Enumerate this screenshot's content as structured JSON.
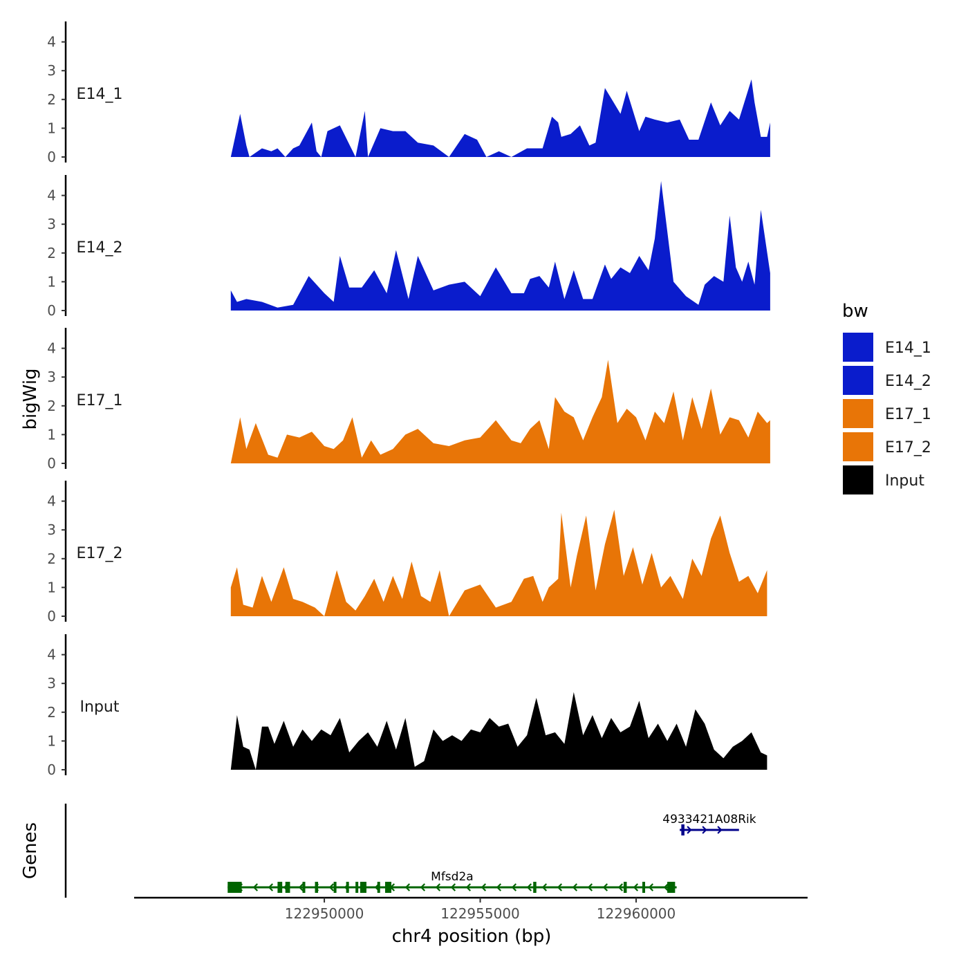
{
  "chart_data": {
    "type": "area",
    "title": "",
    "xlabel": "chr4 position (bp)",
    "ylabel": "bigWig",
    "genes_label": "Genes",
    "xlim": [
      122943900,
      122965500
    ],
    "ylim": [
      0,
      4.7
    ],
    "x_ticks": [
      122950000,
      122955000,
      122960000
    ],
    "x_tick_labels": [
      "122950000",
      "122955000",
      "122960000"
    ],
    "y_ticks": [
      0,
      1,
      2,
      3,
      4
    ],
    "y_tick_labels": [
      "0",
      "1",
      "2",
      "3",
      "4"
    ],
    "legend": {
      "title": "bw",
      "position": "right",
      "items": [
        {
          "label": "E14_1",
          "color": "#0a1ccc"
        },
        {
          "label": "E14_2",
          "color": "#0a1ccc"
        },
        {
          "label": "E17_1",
          "color": "#e87507"
        },
        {
          "label": "E17_2",
          "color": "#e87507"
        },
        {
          "label": "Input",
          "color": "#000000"
        }
      ]
    },
    "series": [
      {
        "name": "E14_1",
        "color": "#0a1ccc",
        "x": [
          122947000,
          122947100,
          122947300,
          122947500,
          122947600,
          122948000,
          122948300,
          122948500,
          122948750,
          122949000,
          122949200,
          122949600,
          122949750,
          122949900,
          122950100,
          122950500,
          122951000,
          122951300,
          122951400,
          122951800,
          122952200,
          122952600,
          122953000,
          122953500,
          122954000,
          122954500,
          122954900,
          122955200,
          122955600,
          122956000,
          122956500,
          122957000,
          122957300,
          122957500,
          122957600,
          122957900,
          122958200,
          122958500,
          122958700,
          122959000,
          122959500,
          122959700,
          122959900,
          122960100,
          122960300,
          122960600,
          122961000,
          122961400,
          122961700,
          122962000,
          122962400,
          122962700,
          122963000,
          122963300,
          122963700,
          122963800,
          122964000,
          122964200,
          122964300
        ],
        "values": [
          0,
          0.5,
          1.5,
          0.4,
          0,
          0.3,
          0.2,
          0.3,
          0,
          0.3,
          0.4,
          1.2,
          0.2,
          0,
          0.9,
          1.1,
          0,
          1.6,
          0,
          1,
          0.9,
          0.9,
          0.5,
          0.4,
          0,
          0.8,
          0.6,
          0,
          0.2,
          0,
          0.3,
          0.3,
          1.4,
          1.2,
          0.7,
          0.8,
          1.1,
          0.4,
          0.5,
          2.4,
          1.5,
          2.3,
          1.6,
          0.9,
          1.4,
          1.3,
          1.2,
          1.3,
          0.6,
          0.6,
          1.9,
          1.1,
          1.6,
          1.3,
          2.7,
          1.9,
          0.7,
          0.7,
          1.2
        ]
      },
      {
        "name": "E14_2",
        "color": "#0a1ccc",
        "x": [
          122947000,
          122947200,
          122947500,
          122948000,
          122948500,
          122949000,
          122949500,
          122950000,
          122950300,
          122950500,
          122950800,
          122951200,
          122951600,
          122952000,
          122952300,
          122952700,
          122953000,
          122953500,
          122954000,
          122954500,
          122955000,
          122955500,
          122956000,
          122956400,
          122956600,
          122956900,
          122957200,
          122957400,
          122957700,
          122958000,
          122958300,
          122958600,
          122959000,
          122959200,
          122959500,
          122959800,
          122960100,
          122960400,
          122960600,
          122960800,
          122961200,
          122961600,
          122962000,
          122962200,
          122962500,
          122962800,
          122963000,
          122963200,
          122963400,
          122963600,
          122963800,
          122964000,
          122964300
        ],
        "values": [
          0.7,
          0.3,
          0.4,
          0.3,
          0.1,
          0.2,
          1.2,
          0.6,
          0.3,
          1.9,
          0.8,
          0.8,
          1.4,
          0.6,
          2.1,
          0.4,
          1.9,
          0.7,
          0.9,
          1,
          0.5,
          1.5,
          0.6,
          0.6,
          1.1,
          1.2,
          0.8,
          1.7,
          0.4,
          1.4,
          0.4,
          0.4,
          1.6,
          1.1,
          1.5,
          1.3,
          1.9,
          1.4,
          2.5,
          4.5,
          1,
          0.5,
          0.2,
          0.9,
          1.2,
          1,
          3.3,
          1.5,
          1,
          1.7,
          0.9,
          3.5,
          1.3
        ]
      },
      {
        "name": "E17_1",
        "color": "#e87507",
        "x": [
          122947000,
          122947300,
          122947500,
          122947800,
          122948200,
          122948500,
          122948800,
          122949200,
          122949600,
          122950000,
          122950300,
          122950600,
          122950900,
          122951200,
          122951500,
          122951800,
          122952200,
          122952600,
          122953000,
          122953500,
          122954000,
          122954500,
          122955000,
          122955500,
          122956000,
          122956300,
          122956600,
          122956900,
          122957200,
          122957400,
          122957700,
          122958000,
          122958300,
          122958600,
          122958900,
          122959100,
          122959400,
          122959700,
          122960000,
          122960300,
          122960600,
          122960900,
          122961200,
          122961500,
          122961800,
          122962100,
          122962400,
          122962700,
          122963000,
          122963300,
          122963600,
          122963900,
          122964200,
          122964300
        ],
        "values": [
          0,
          1.6,
          0.5,
          1.4,
          0.3,
          0.2,
          1,
          0.9,
          1.1,
          0.6,
          0.5,
          0.8,
          1.6,
          0.2,
          0.8,
          0.3,
          0.5,
          1,
          1.2,
          0.7,
          0.6,
          0.8,
          0.9,
          1.5,
          0.8,
          0.7,
          1.2,
          1.5,
          0.5,
          2.3,
          1.8,
          1.6,
          0.8,
          1.6,
          2.3,
          3.6,
          1.4,
          1.9,
          1.6,
          0.8,
          1.8,
          1.4,
          2.5,
          0.8,
          2.3,
          1.2,
          2.6,
          1,
          1.6,
          1.5,
          0.9,
          1.8,
          1.4,
          1.5
        ]
      },
      {
        "name": "E17_2",
        "color": "#e87507",
        "x": [
          122947000,
          122947200,
          122947400,
          122947700,
          122948000,
          122948300,
          122948700,
          122949000,
          122949300,
          122949700,
          122950000,
          122950400,
          122950700,
          122951000,
          122951300,
          122951600,
          122951900,
          122952200,
          122952500,
          122952800,
          122953100,
          122953400,
          122953700,
          122954000,
          122954500,
          122955000,
          122955500,
          122956000,
          122956400,
          122956700,
          122957000,
          122957200,
          122957500,
          122957600,
          122957900,
          122958100,
          122958400,
          122958700,
          122959000,
          122959300,
          122959600,
          122959900,
          122960200,
          122960500,
          122960800,
          122961100,
          122961500,
          122961800,
          122962100,
          122962400,
          122962700,
          122963000,
          122963300,
          122963600,
          122963900,
          122964200
        ],
        "values": [
          1,
          1.7,
          0.4,
          0.3,
          1.4,
          0.5,
          1.7,
          0.6,
          0.5,
          0.3,
          0,
          1.6,
          0.5,
          0.2,
          0.7,
          1.3,
          0.5,
          1.4,
          0.6,
          1.9,
          0.7,
          0.5,
          1.6,
          0,
          0.9,
          1.1,
          0.3,
          0.5,
          1.3,
          1.4,
          0.5,
          1,
          1.3,
          3.6,
          1,
          2.1,
          3.5,
          0.9,
          2.5,
          3.7,
          1.4,
          2.4,
          1.1,
          2.2,
          1,
          1.4,
          0.6,
          2,
          1.4,
          2.7,
          3.5,
          2.2,
          1.2,
          1.4,
          0.8,
          1.6
        ]
      },
      {
        "name": "Input",
        "color": "#000000",
        "x": [
          122947000,
          122947200,
          122947400,
          122947600,
          122947800,
          122948000,
          122948200,
          122948400,
          122948700,
          122949000,
          122949300,
          122949600,
          122949900,
          122950200,
          122950500,
          122950800,
          122951100,
          122951400,
          122951700,
          122952000,
          122952300,
          122952600,
          122952900,
          122953200,
          122953500,
          122953800,
          122954100,
          122954400,
          122954700,
          122955000,
          122955300,
          122955600,
          122955900,
          122956200,
          122956500,
          122956800,
          122957100,
          122957400,
          122957700,
          122958000,
          122958300,
          122958600,
          122958900,
          122959200,
          122959500,
          122959800,
          122960100,
          122960400,
          122960700,
          122961000,
          122961300,
          122961600,
          122961900,
          122962200,
          122962500,
          122962800,
          122963100,
          122963400,
          122963700,
          122964000,
          122964200
        ],
        "values": [
          0,
          1.9,
          0.8,
          0.7,
          0,
          1.5,
          1.5,
          0.9,
          1.7,
          0.8,
          1.4,
          1.0,
          1.4,
          1.2,
          1.8,
          0.6,
          1.0,
          1.3,
          0.8,
          1.7,
          0.7,
          1.8,
          0.1,
          0.3,
          1.4,
          1.0,
          1.2,
          1.0,
          1.4,
          1.3,
          1.8,
          1.5,
          1.6,
          0.8,
          1.2,
          2.5,
          1.2,
          1.3,
          0.9,
          2.7,
          1.2,
          1.9,
          1.1,
          1.8,
          1.3,
          1.5,
          2.4,
          1.1,
          1.6,
          1.0,
          1.6,
          0.8,
          2.1,
          1.6,
          0.7,
          0.4,
          0.8,
          1.0,
          1.3,
          0.6,
          0.5
        ]
      }
    ],
    "genes": [
      {
        "name": "Mfsd2a",
        "color": "#006400",
        "strand": "-",
        "start": 122946900,
        "end": 122961300,
        "exons": [
          [
            122946900,
            122947350
          ],
          [
            122948500,
            122948650
          ],
          [
            122948750,
            122948900
          ],
          [
            122949300,
            122949380
          ],
          [
            122949700,
            122949800
          ],
          [
            122950300,
            122950380
          ],
          [
            122950700,
            122950780
          ],
          [
            122951000,
            122951060
          ],
          [
            122951150,
            122951350
          ],
          [
            122951700,
            122951780
          ],
          [
            122951950,
            122952150
          ],
          [
            122956700,
            122956800
          ],
          [
            122959600,
            122959700
          ],
          [
            122960200,
            122960280
          ],
          [
            122961000,
            122961250
          ]
        ]
      },
      {
        "name": "4933421A08Rik",
        "color": "#00008b",
        "strand": "+",
        "start": 122961400,
        "end": 122963300,
        "exons": [
          [
            122961450,
            122961550
          ]
        ]
      }
    ]
  }
}
